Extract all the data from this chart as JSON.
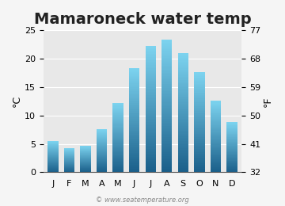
{
  "title": "Mamaroneck water temp",
  "months": [
    "J",
    "F",
    "M",
    "A",
    "M",
    "J",
    "J",
    "A",
    "S",
    "O",
    "N",
    "D"
  ],
  "values_c": [
    5.5,
    4.3,
    4.7,
    7.6,
    12.2,
    18.4,
    22.3,
    23.4,
    21.0,
    17.6,
    12.6,
    8.8
  ],
  "ylim_c": [
    0,
    25
  ],
  "yticks_c": [
    0,
    5,
    10,
    15,
    20,
    25
  ],
  "yticks_f": [
    32,
    41,
    50,
    59,
    68,
    77
  ],
  "ylabel_left": "°C",
  "ylabel_right": "°F",
  "bg_color": "#e8e8e8",
  "bar_color_top": "#7dd4f0",
  "bar_color_bottom": "#1a5f8a",
  "fig_bg_color": "#f5f5f5",
  "watermark": "© www.seatemperature.org",
  "title_fontsize": 14,
  "tick_fontsize": 8,
  "label_fontsize": 9
}
